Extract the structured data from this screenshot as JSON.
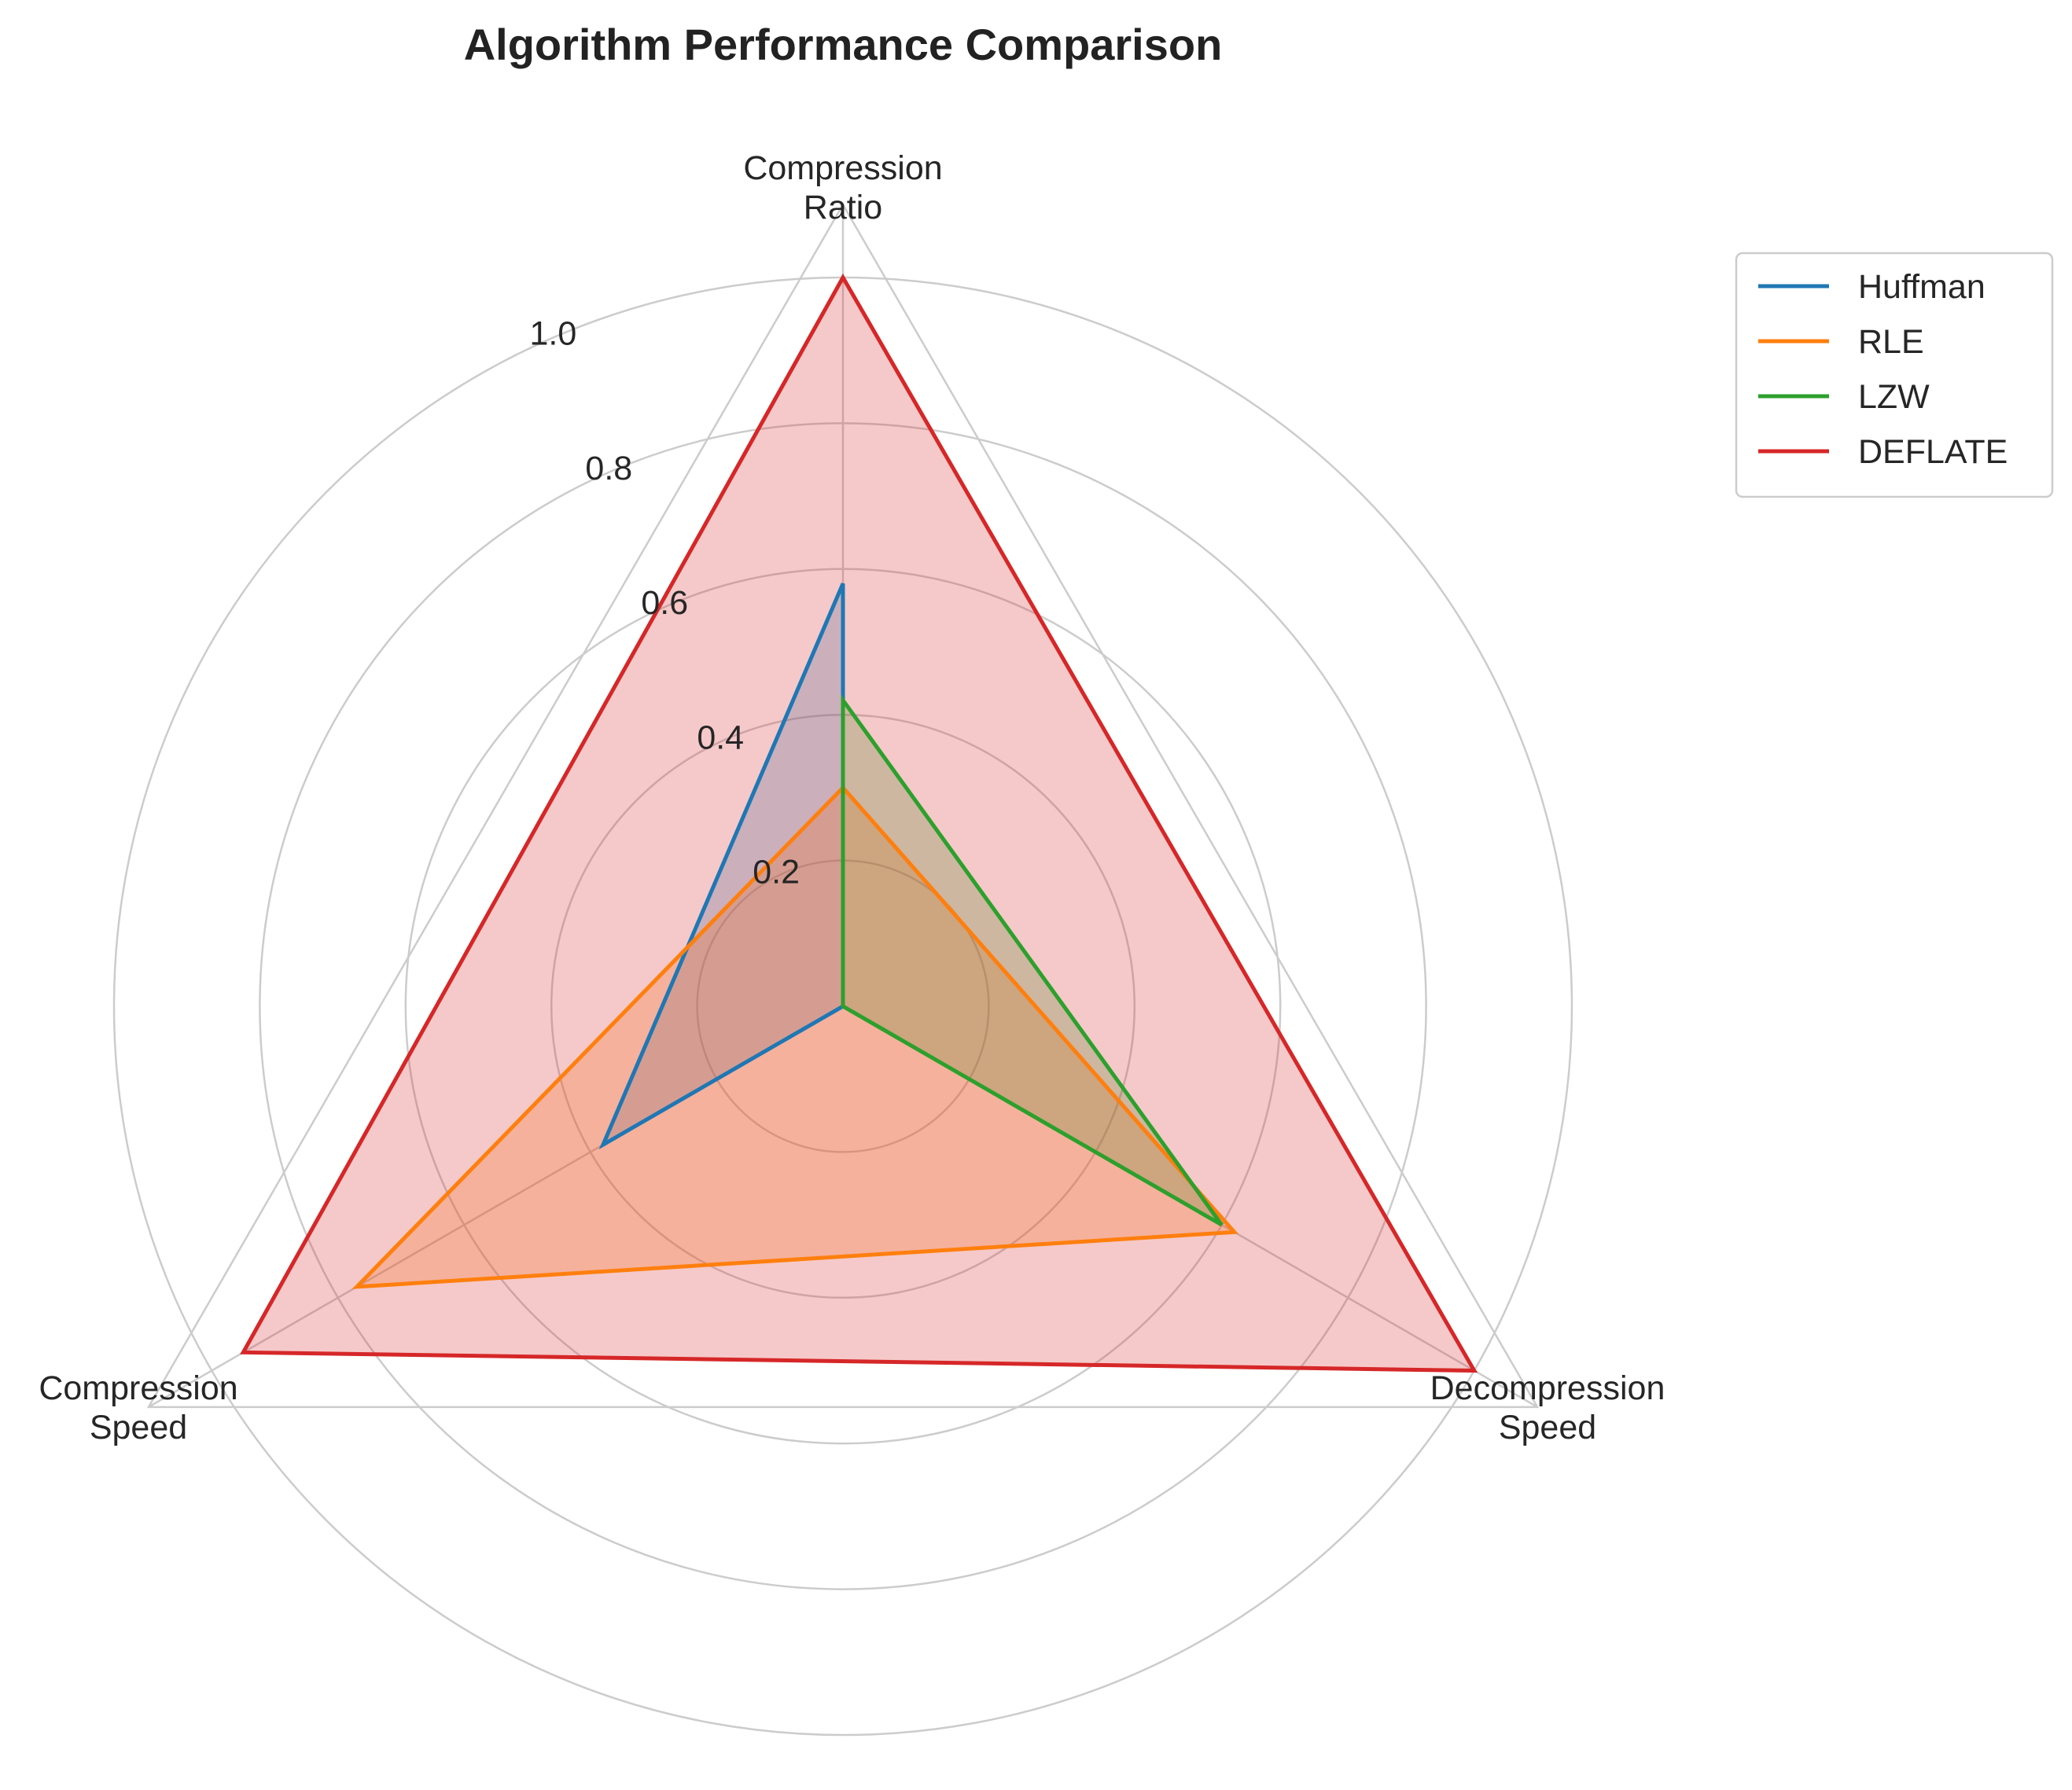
{
  "chart_data": {
    "type": "radar",
    "title": "Algorithm Performance Comparison",
    "axes": [
      {
        "line1": "Compression",
        "line2": "Ratio"
      },
      {
        "line1": "Decompression",
        "line2": "Speed"
      },
      {
        "line1": "Compression",
        "line2": "Speed"
      }
    ],
    "rticks": [
      "0.2",
      "0.4",
      "0.6",
      "0.8",
      "1.0"
    ],
    "rlim": [
      0,
      1.1
    ],
    "grid": true,
    "legend_position": "top-right (outside)",
    "series": [
      {
        "name": "Huffman",
        "color": "#1f77b4",
        "values": [
          0.58,
          0.0,
          0.38
        ]
      },
      {
        "name": "RLE",
        "color": "#ff7f0e",
        "values": [
          0.3,
          0.62,
          0.77
        ]
      },
      {
        "name": "LZW",
        "color": "#2ca02c",
        "values": [
          0.42,
          0.6,
          0.0
        ]
      },
      {
        "name": "DEFLATE",
        "color": "#d62728",
        "values": [
          1.0,
          1.0,
          0.95
        ]
      }
    ]
  }
}
